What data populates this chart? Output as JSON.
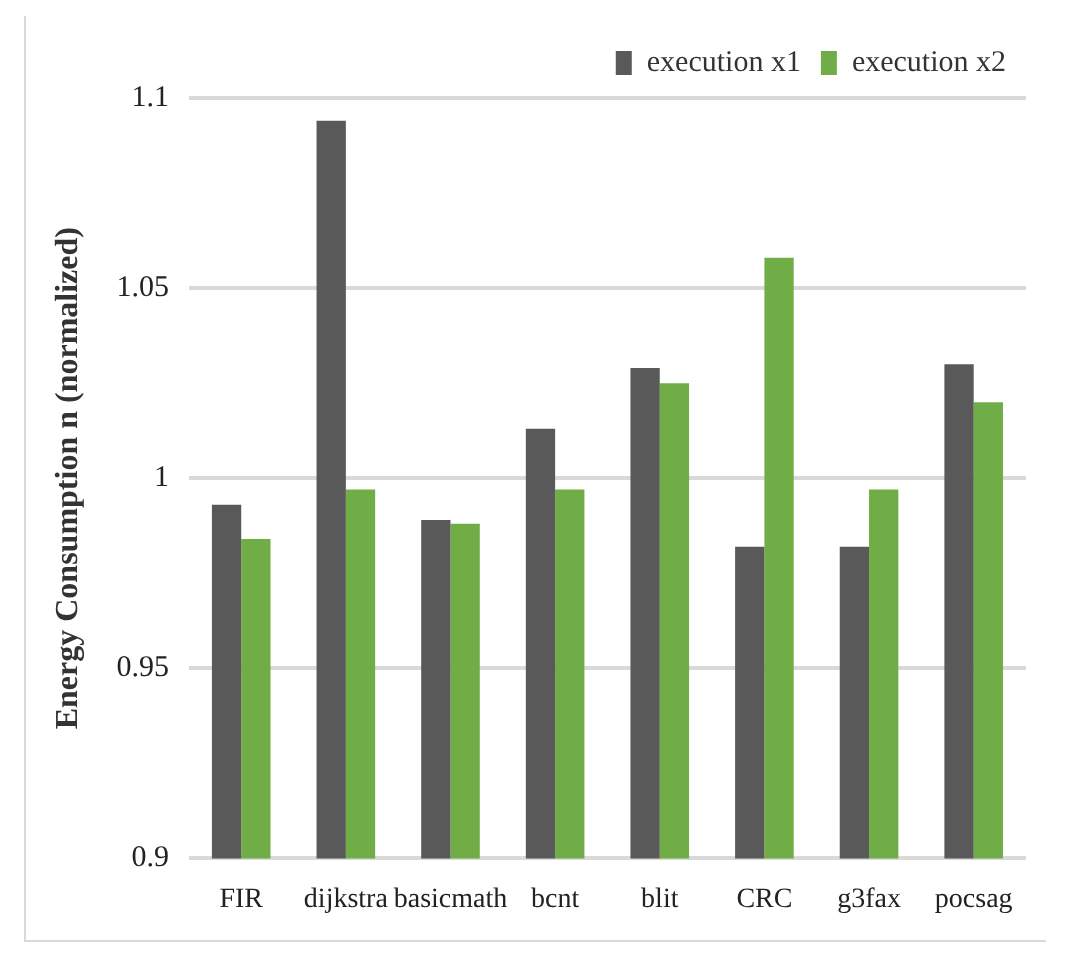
{
  "chart_data": {
    "type": "bar",
    "ylabel": "Energy Consumption n (normalized)",
    "categories": [
      "FIR",
      "dijkstra",
      "basicmath",
      "bcnt",
      "blit",
      "CRC",
      "g3fax",
      "pocsag"
    ],
    "series": [
      {
        "name": "execution x1",
        "color": "#595959",
        "values": [
          0.993,
          1.094,
          0.989,
          1.013,
          1.029,
          0.982,
          0.982,
          1.03
        ]
      },
      {
        "name": "execution x2",
        "color": "#70ad47",
        "values": [
          0.984,
          0.997,
          0.988,
          0.997,
          1.025,
          1.058,
          0.997,
          1.02
        ]
      }
    ],
    "ylim": [
      0.9,
      1.1
    ],
    "yticks": [
      0.9,
      0.95,
      1,
      1.05,
      1.1
    ],
    "grid": "y",
    "legend": "top right"
  }
}
